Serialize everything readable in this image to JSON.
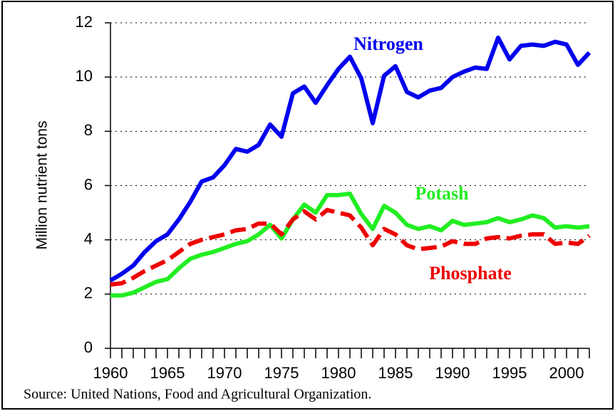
{
  "chart_data": {
    "type": "line",
    "y_label": "Million nutrient tons",
    "source": "Source: United Nations, Food and Agricultural Organization.",
    "x": [
      1960,
      1961,
      1962,
      1963,
      1964,
      1965,
      1966,
      1967,
      1968,
      1969,
      1970,
      1971,
      1972,
      1973,
      1974,
      1975,
      1976,
      1977,
      1978,
      1979,
      1980,
      1981,
      1982,
      1983,
      1984,
      1985,
      1986,
      1987,
      1988,
      1989,
      1990,
      1991,
      1992,
      1993,
      1994,
      1995,
      1996,
      1997,
      1998,
      1999,
      2000,
      2001,
      2002
    ],
    "series": [
      {
        "name": "Nitrogen",
        "color": "#0000ee",
        "dashed": false,
        "values": [
          2.5,
          2.75,
          3.05,
          3.55,
          3.95,
          4.2,
          4.75,
          5.4,
          6.15,
          6.3,
          6.75,
          7.35,
          7.25,
          7.5,
          8.25,
          7.8,
          9.4,
          9.65,
          9.05,
          9.7,
          10.3,
          10.75,
          9.95,
          8.3,
          10.05,
          10.4,
          9.45,
          9.25,
          9.5,
          9.6,
          10.0,
          10.2,
          10.35,
          10.3,
          11.45,
          10.65,
          11.15,
          11.2,
          11.15,
          11.3,
          11.2,
          10.45,
          10.9
        ]
      },
      {
        "name": "Potash",
        "color": "#22ee22",
        "dashed": false,
        "values": [
          1.95,
          1.95,
          2.05,
          2.25,
          2.45,
          2.55,
          2.95,
          3.3,
          3.45,
          3.55,
          3.7,
          3.85,
          3.95,
          4.2,
          4.55,
          4.05,
          4.75,
          5.3,
          5.0,
          5.65,
          5.65,
          5.7,
          4.95,
          4.4,
          5.25,
          5.0,
          4.55,
          4.4,
          4.5,
          4.35,
          4.7,
          4.55,
          4.6,
          4.65,
          4.8,
          4.65,
          4.75,
          4.9,
          4.8,
          4.45,
          4.5,
          4.45,
          4.5
        ]
      },
      {
        "name": "Phosphate",
        "color": "#ee0000",
        "dashed": true,
        "values": [
          2.35,
          2.4,
          2.6,
          2.85,
          3.05,
          3.25,
          3.55,
          3.85,
          4.0,
          4.1,
          4.2,
          4.35,
          4.4,
          4.6,
          4.6,
          4.2,
          4.75,
          5.05,
          4.75,
          5.1,
          5.0,
          4.9,
          4.45,
          3.8,
          4.4,
          4.2,
          3.8,
          3.65,
          3.7,
          3.75,
          3.95,
          3.85,
          3.85,
          4.05,
          4.1,
          4.05,
          4.15,
          4.2,
          4.2,
          3.85,
          3.9,
          3.85,
          4.15
        ]
      }
    ],
    "xlim": [
      1960,
      2002
    ],
    "xticks": [
      1960,
      1965,
      1970,
      1975,
      1980,
      1985,
      1990,
      1995,
      2000
    ],
    "ylim": [
      0,
      12
    ],
    "yticks": [
      0,
      2,
      4,
      6,
      8,
      10,
      12
    ],
    "grid": true
  }
}
